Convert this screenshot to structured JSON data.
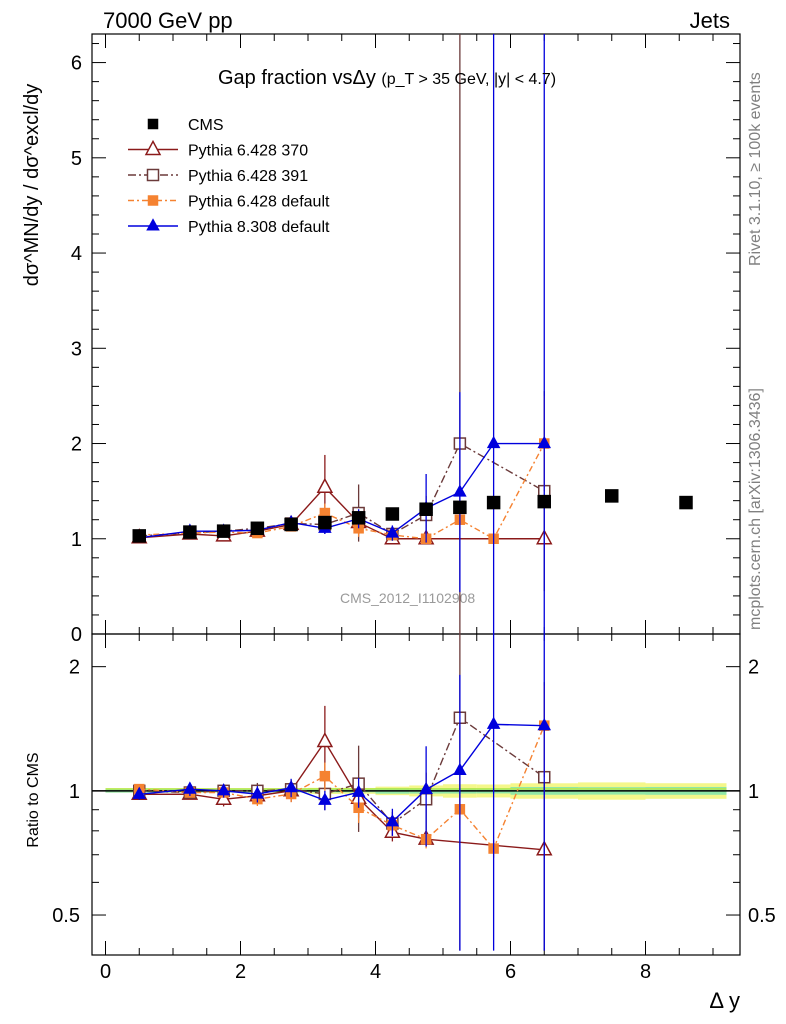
{
  "header": {
    "energy": "7000 GeV pp",
    "process": "Jets",
    "rivet": "Rivet 3.1.10, ≥ 100k events",
    "mcplots": "mcplots.cern.ch [arXiv:1306.3436]",
    "analysis": "CMS_2012_I1102908"
  },
  "chart_data": {
    "type": "scatter",
    "title": "Gap fraction vsΔy",
    "title_cuts": "(p_T > 35 GeV, |y| < 4.7)",
    "xlabel": "Δ y",
    "ylabel": "dσ^MN/dy / dσ^excl/dy",
    "ratio_ylabel": "Ratio to CMS",
    "xlim": [
      -0.2,
      9.4
    ],
    "ylim": [
      0,
      6.3
    ],
    "ratio_ylim": [
      0.4,
      2.4
    ],
    "ratio_scale": "log",
    "x_ticks": [
      "0",
      "2",
      "4",
      "6",
      "8"
    ],
    "y_ticks": [
      "0",
      "1",
      "2",
      "3",
      "4",
      "5",
      "6"
    ],
    "ratio_ticks": [
      "0.5",
      "1",
      "2"
    ],
    "legend_position": "top-left",
    "grid": false,
    "reference": {
      "name": "CMS",
      "x": [
        0.5,
        1.25,
        1.75,
        2.25,
        2.75,
        3.25,
        3.75,
        4.25,
        4.75,
        5.25,
        5.75,
        6.5,
        7.5,
        8.6
      ],
      "y": [
        1.03,
        1.07,
        1.08,
        1.11,
        1.15,
        1.17,
        1.22,
        1.26,
        1.31,
        1.33,
        1.38,
        1.39,
        1.45,
        1.38
      ],
      "xerr": [
        0.5,
        0.25,
        0.25,
        0.25,
        0.25,
        0.25,
        0.25,
        0.25,
        0.25,
        0.25,
        0.25,
        0.5,
        0.5,
        0.6
      ],
      "band_inner": [
        0.01,
        0.01,
        0.01,
        0.01,
        0.01,
        0.01,
        0.01,
        0.02,
        0.02,
        0.02,
        0.02,
        0.03,
        0.03,
        0.03
      ],
      "band_outer": [
        0.01,
        0.01,
        0.01,
        0.01,
        0.01,
        0.02,
        0.02,
        0.03,
        0.04,
        0.05,
        0.05,
        0.06,
        0.07,
        0.06
      ]
    },
    "series": [
      {
        "name": "Pythia 6.428 370",
        "color": "#8b1a1a",
        "dash": "",
        "marker": "triangle-open",
        "x": [
          0.5,
          1.25,
          1.75,
          2.25,
          2.75,
          3.25,
          3.75,
          4.25,
          4.75,
          6.5
        ],
        "y": [
          1.01,
          1.05,
          1.03,
          1.08,
          1.15,
          1.54,
          1.17,
          1.0,
          1.0,
          1.0
        ],
        "yerr": [
          0.03,
          0.03,
          0.04,
          0.05,
          0.07,
          0.34,
          0.12,
          0.05,
          0.04,
          0.05
        ]
      },
      {
        "name": "Pythia 6.428 391",
        "color": "#6b3a3a",
        "dash": "8,3,2,3",
        "marker": "square-open",
        "x": [
          0.5,
          1.25,
          1.75,
          2.25,
          2.75,
          3.25,
          3.75,
          4.25,
          4.75,
          5.25,
          6.5
        ],
        "y": [
          1.03,
          1.06,
          1.08,
          1.11,
          1.16,
          1.15,
          1.27,
          1.05,
          1.25,
          2.0,
          1.5
        ],
        "yerr": [
          0.03,
          0.03,
          0.04,
          0.05,
          0.06,
          0.1,
          0.3,
          0.07,
          0.2,
          4.6,
          1.05
        ]
      },
      {
        "name": "Pythia 6.428 default",
        "color": "#f58231",
        "dash": "6,3,2,3",
        "marker": "square-filled",
        "x": [
          0.5,
          1.25,
          1.75,
          2.25,
          2.75,
          3.25,
          3.75,
          4.25,
          4.75,
          5.25,
          5.75,
          6.5
        ],
        "y": [
          1.04,
          1.06,
          1.07,
          1.06,
          1.13,
          1.27,
          1.11,
          1.04,
          1.0,
          1.2,
          1.0,
          2.0
        ],
        "yerr": [
          0.03,
          0.03,
          0.03,
          0.04,
          0.05,
          0.1,
          0.09,
          0.06,
          0.05,
          0.1,
          0.05,
          0.5
        ]
      },
      {
        "name": "Pythia 8.308 default",
        "color": "#0000dd",
        "dash": "",
        "marker": "triangle-filled",
        "x": [
          0.5,
          1.25,
          1.75,
          2.25,
          2.75,
          3.25,
          3.75,
          4.25,
          4.75,
          5.25,
          5.75,
          6.5
        ],
        "y": [
          1.01,
          1.08,
          1.08,
          1.09,
          1.17,
          1.11,
          1.21,
          1.06,
          1.32,
          1.49,
          2.0,
          2.0
        ],
        "yerr": [
          0.03,
          0.04,
          0.04,
          0.05,
          0.06,
          0.06,
          0.1,
          0.08,
          0.36,
          1.05,
          4.4,
          4.4
        ]
      }
    ]
  }
}
